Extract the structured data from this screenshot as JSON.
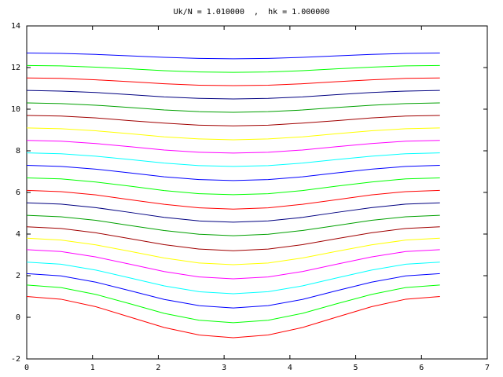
{
  "chart_data": {
    "type": "line",
    "title": "Uk/N = 1.010000  ,  hk = 1.000000",
    "x": [
      0,
      0.52,
      1.05,
      1.57,
      2.09,
      2.62,
      3.14,
      3.67,
      4.19,
      4.71,
      5.24,
      5.76,
      6.28
    ],
    "xlim": [
      0,
      7
    ],
    "xticks": [
      0,
      1,
      2,
      3,
      4,
      5,
      6,
      7
    ],
    "ylim": [
      -2,
      14
    ],
    "yticks": [
      -2,
      0,
      2,
      4,
      6,
      8,
      10,
      12,
      14
    ],
    "series": [
      {
        "color": "#ff0000",
        "values": [
          1.0,
          0.87,
          0.51,
          0.01,
          -0.49,
          -0.85,
          -0.98,
          -0.85,
          -0.49,
          0.01,
          0.51,
          0.87,
          1.0
        ]
      },
      {
        "color": "#00ff00",
        "values": [
          1.55,
          1.43,
          1.1,
          0.65,
          0.19,
          -0.14,
          -0.26,
          -0.14,
          0.19,
          0.65,
          1.1,
          1.43,
          1.55
        ]
      },
      {
        "color": "#0000ff",
        "values": [
          2.1,
          1.99,
          1.69,
          1.28,
          0.86,
          0.56,
          0.45,
          0.56,
          0.86,
          1.28,
          1.69,
          1.99,
          2.1
        ]
      },
      {
        "color": "#00ffff",
        "values": [
          2.65,
          2.55,
          2.27,
          1.89,
          1.51,
          1.23,
          1.13,
          1.23,
          1.51,
          1.89,
          2.27,
          2.55,
          2.65
        ]
      },
      {
        "color": "#ff00ff",
        "values": [
          3.25,
          3.16,
          2.9,
          2.55,
          2.2,
          1.94,
          1.85,
          1.94,
          2.2,
          2.55,
          2.9,
          3.16,
          3.25
        ]
      },
      {
        "color": "#ffff00",
        "values": [
          3.8,
          3.71,
          3.48,
          3.17,
          2.85,
          2.61,
          2.53,
          2.61,
          2.85,
          3.17,
          3.48,
          3.71,
          3.8
        ]
      },
      {
        "color": "#a00000",
        "values": [
          4.35,
          4.27,
          4.06,
          3.78,
          3.49,
          3.28,
          3.2,
          3.28,
          3.49,
          3.78,
          4.06,
          4.27,
          4.35
        ]
      },
      {
        "color": "#00a000",
        "values": [
          4.9,
          4.83,
          4.66,
          4.41,
          4.17,
          3.99,
          3.92,
          3.99,
          4.17,
          4.41,
          4.66,
          4.83,
          4.9
        ]
      },
      {
        "color": "#000080",
        "values": [
          5.5,
          5.44,
          5.27,
          5.04,
          4.8,
          4.63,
          4.57,
          4.63,
          4.8,
          5.04,
          5.27,
          5.44,
          5.5
        ]
      },
      {
        "color": "#ff0000",
        "values": [
          6.1,
          6.04,
          5.88,
          5.65,
          5.43,
          5.26,
          5.2,
          5.26,
          5.43,
          5.65,
          5.88,
          6.04,
          6.1
        ]
      },
      {
        "color": "#00ff00",
        "values": [
          6.7,
          6.65,
          6.5,
          6.3,
          6.09,
          5.94,
          5.89,
          5.94,
          6.09,
          6.3,
          6.5,
          6.65,
          6.7
        ]
      },
      {
        "color": "#0000ff",
        "values": [
          7.3,
          7.25,
          7.12,
          6.94,
          6.75,
          6.62,
          6.57,
          6.62,
          6.75,
          6.94,
          7.12,
          7.25,
          7.3
        ]
      },
      {
        "color": "#00ffff",
        "values": [
          7.9,
          7.86,
          7.74,
          7.58,
          7.41,
          7.29,
          7.25,
          7.29,
          7.41,
          7.58,
          7.74,
          7.86,
          7.9
        ]
      },
      {
        "color": "#ff00ff",
        "values": [
          8.5,
          8.46,
          8.35,
          8.2,
          8.04,
          7.93,
          7.89,
          7.93,
          8.04,
          8.2,
          8.35,
          8.46,
          8.5
        ]
      },
      {
        "color": "#ffff00",
        "values": [
          9.1,
          9.06,
          8.96,
          8.82,
          8.67,
          8.57,
          8.53,
          8.57,
          8.67,
          8.82,
          8.96,
          9.06,
          9.1
        ]
      },
      {
        "color": "#a00000",
        "values": [
          9.7,
          9.67,
          9.58,
          9.45,
          9.33,
          9.23,
          9.2,
          9.23,
          9.33,
          9.45,
          9.58,
          9.67,
          9.7
        ]
      },
      {
        "color": "#00a000",
        "values": [
          10.3,
          10.27,
          10.19,
          10.08,
          9.96,
          9.88,
          9.85,
          9.88,
          9.96,
          10.08,
          10.19,
          10.27,
          10.3
        ]
      },
      {
        "color": "#000080",
        "values": [
          10.9,
          10.87,
          10.8,
          10.7,
          10.59,
          10.52,
          10.49,
          10.52,
          10.59,
          10.7,
          10.8,
          10.87,
          10.9
        ]
      },
      {
        "color": "#ff0000",
        "values": [
          11.5,
          11.48,
          11.41,
          11.32,
          11.22,
          11.15,
          11.13,
          11.15,
          11.22,
          11.32,
          11.41,
          11.48,
          11.5
        ]
      },
      {
        "color": "#00ff00",
        "values": [
          12.1,
          12.08,
          12.02,
          11.94,
          11.85,
          11.79,
          11.77,
          11.79,
          11.85,
          11.94,
          12.02,
          12.08,
          12.1
        ]
      },
      {
        "color": "#0000ff",
        "values": [
          12.7,
          12.68,
          12.63,
          12.56,
          12.49,
          12.44,
          12.42,
          12.44,
          12.49,
          12.56,
          12.63,
          12.68,
          12.7
        ]
      }
    ]
  }
}
